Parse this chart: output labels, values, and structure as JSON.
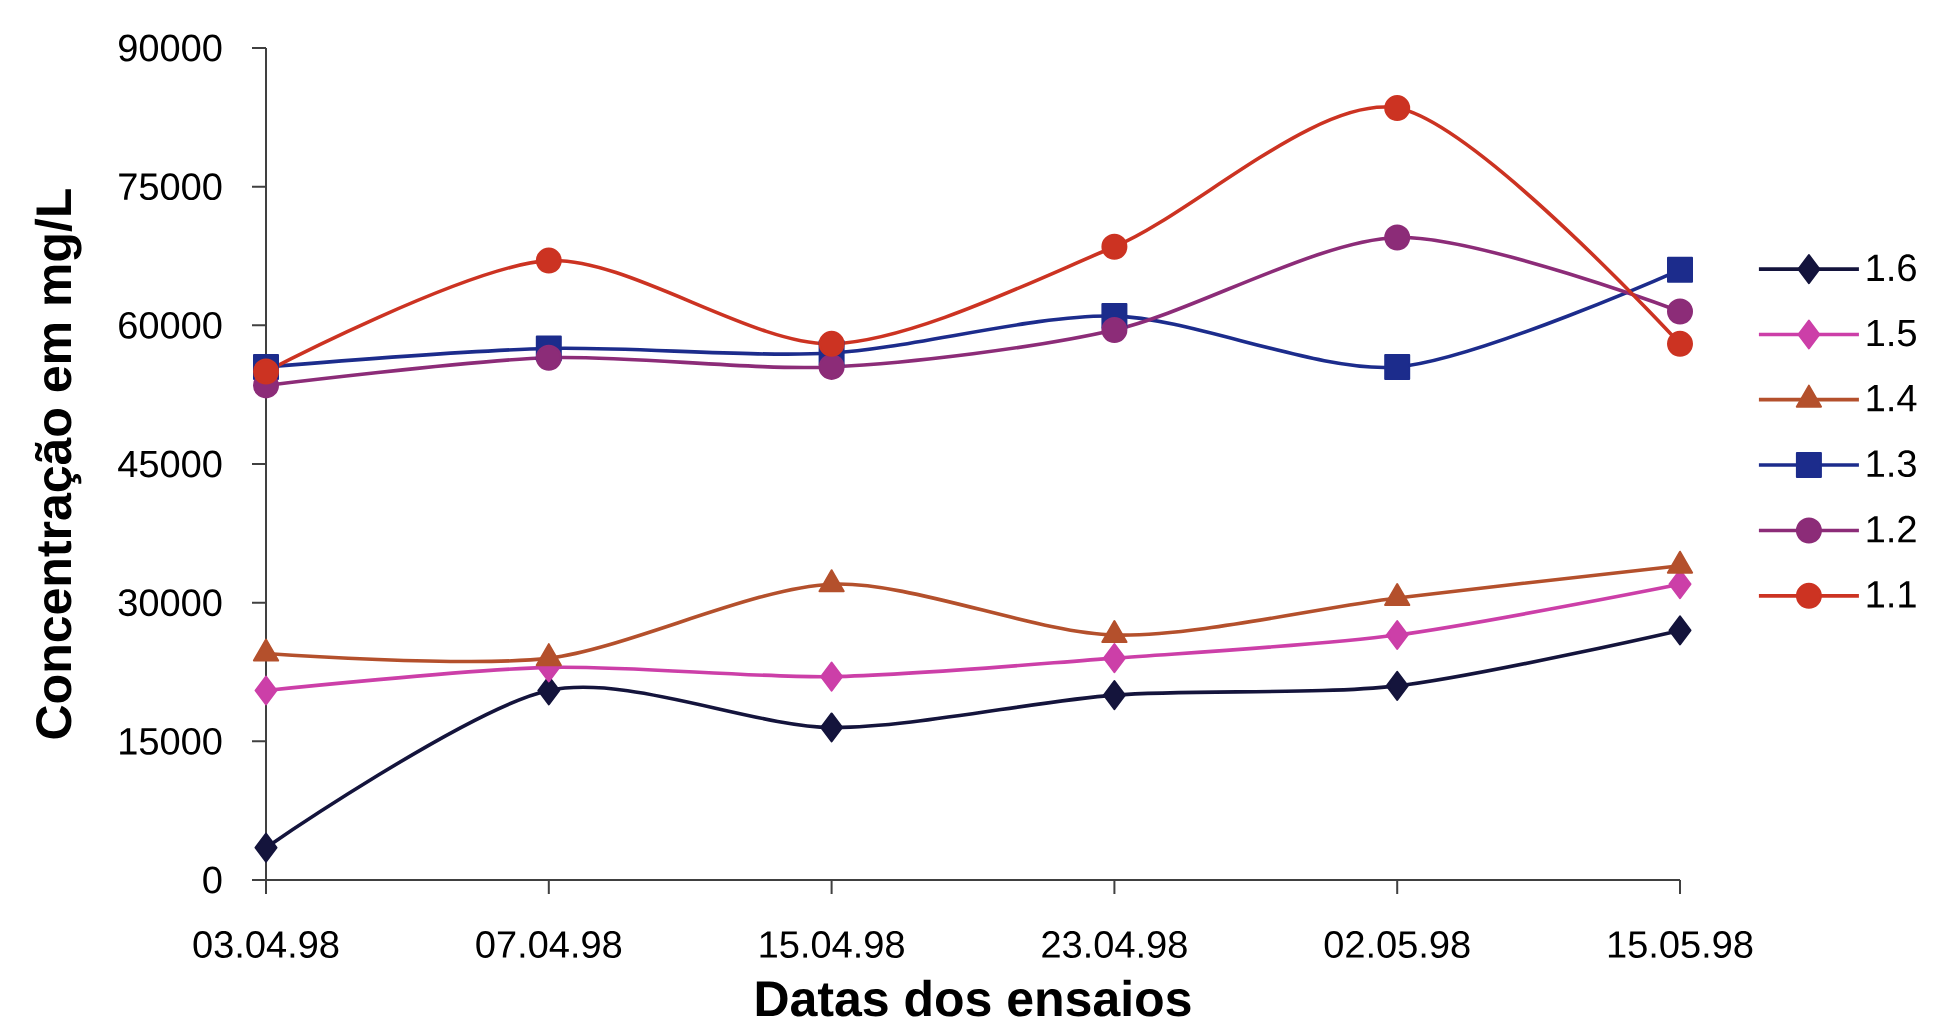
{
  "chart_data": {
    "type": "line",
    "xlabel": "Datas dos ensaios",
    "ylabel": "Concentração em mg/L",
    "categories": [
      "03.04.98",
      "07.04.98",
      "15.04.98",
      "23.04.98",
      "02.05.98",
      "15.05.98"
    ],
    "ylim": [
      0,
      90000
    ],
    "yticks": [
      0,
      15000,
      30000,
      45000,
      60000,
      75000,
      90000
    ],
    "legend": "right",
    "line_style": "solid",
    "series": [
      {
        "name": "1.6",
        "color": "#14143c",
        "marker": "diamond",
        "values": [
          3500,
          20500,
          16500,
          20000,
          21000,
          27000
        ]
      },
      {
        "name": "1.5",
        "color": "#cc3fa8",
        "marker": "diamond",
        "values": [
          20500,
          23000,
          22000,
          24000,
          26500,
          32000
        ]
      },
      {
        "name": "1.4",
        "color": "#b4502c",
        "marker": "triangle",
        "values": [
          24500,
          24000,
          32000,
          26500,
          30500,
          34000
        ]
      },
      {
        "name": "1.3",
        "color": "#1c2c8c",
        "marker": "square",
        "values": [
          55500,
          57500,
          57000,
          61000,
          55500,
          66000
        ]
      },
      {
        "name": "1.2",
        "color": "#8c2c78",
        "marker": "circle",
        "values": [
          53500,
          56500,
          55500,
          59500,
          69500,
          61500
        ]
      },
      {
        "name": "1.1",
        "color": "#cc3322",
        "marker": "circle",
        "values": [
          55000,
          67000,
          58000,
          68500,
          83500,
          58000
        ]
      }
    ]
  }
}
